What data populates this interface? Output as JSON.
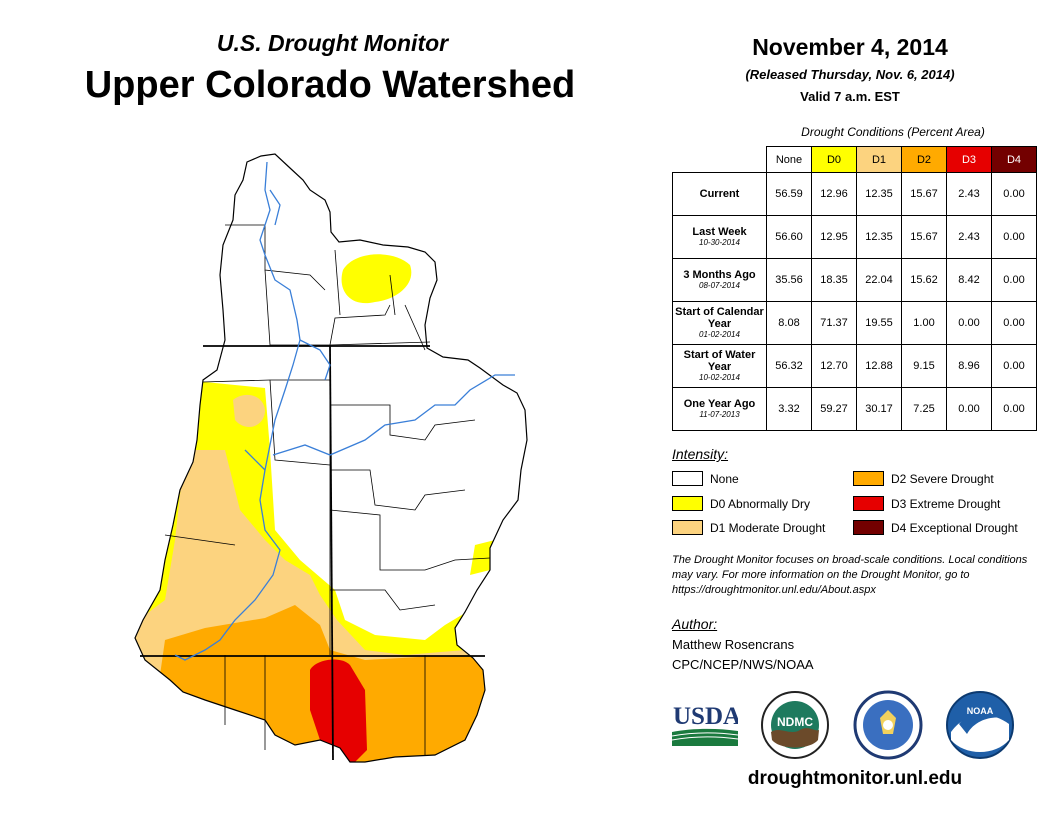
{
  "header": {
    "subtitle": "U.S. Drought Monitor",
    "title": "Upper Colorado Watershed",
    "date": "November 4, 2014",
    "released": "(Released Thursday, Nov. 6, 2014)",
    "valid": "Valid 7 a.m. EST"
  },
  "table": {
    "title": "Drought Conditions (Percent Area)",
    "columns": [
      "None",
      "D0",
      "D1",
      "D2",
      "D3",
      "D4"
    ],
    "rows": [
      {
        "label": "Current",
        "date": "",
        "values": [
          "56.59",
          "12.96",
          "12.35",
          "15.67",
          "2.43",
          "0.00"
        ]
      },
      {
        "label": "Last Week",
        "date": "10-30-2014",
        "values": [
          "56.60",
          "12.95",
          "12.35",
          "15.67",
          "2.43",
          "0.00"
        ]
      },
      {
        "label": "3 Months Ago",
        "date": "08-07-2014",
        "values": [
          "35.56",
          "18.35",
          "22.04",
          "15.62",
          "8.42",
          "0.00"
        ]
      },
      {
        "label": "Start of Calendar Year",
        "date": "01-02-2014",
        "values": [
          "8.08",
          "71.37",
          "19.55",
          "1.00",
          "0.00",
          "0.00"
        ]
      },
      {
        "label": "Start of Water Year",
        "date": "10-02-2014",
        "values": [
          "56.32",
          "12.70",
          "12.88",
          "9.15",
          "8.96",
          "0.00"
        ]
      },
      {
        "label": "One Year Ago",
        "date": "11-07-2013",
        "values": [
          "3.32",
          "59.27",
          "30.17",
          "7.25",
          "0.00",
          "0.00"
        ]
      }
    ]
  },
  "legend": {
    "title": "Intensity:",
    "items": [
      {
        "label": "None",
        "color": "#ffffff"
      },
      {
        "label": "D0 Abnormally Dry",
        "color": "#ffff00"
      },
      {
        "label": "D1 Moderate Drought",
        "color": "#fcd37f"
      },
      {
        "label": "D2 Severe Drought",
        "color": "#ffaa00"
      },
      {
        "label": "D3 Extreme Drought",
        "color": "#e60000"
      },
      {
        "label": "D4 Exceptional Drought",
        "color": "#730000"
      }
    ]
  },
  "note": "The Drought Monitor focuses on broad-scale conditions. Local conditions may vary. For more information on the Drought Monitor, go to https://droughtmonitor.unl.edu/About.aspx",
  "author": {
    "title": "Author:",
    "name": "Matthew Rosencrans",
    "org": "CPC/NCEP/NWS/NOAA"
  },
  "logos": {
    "usda": "USDA",
    "ndmc": "NDMC",
    "noaa": "NOAA"
  },
  "website": "droughtmonitor.unl.edu"
}
